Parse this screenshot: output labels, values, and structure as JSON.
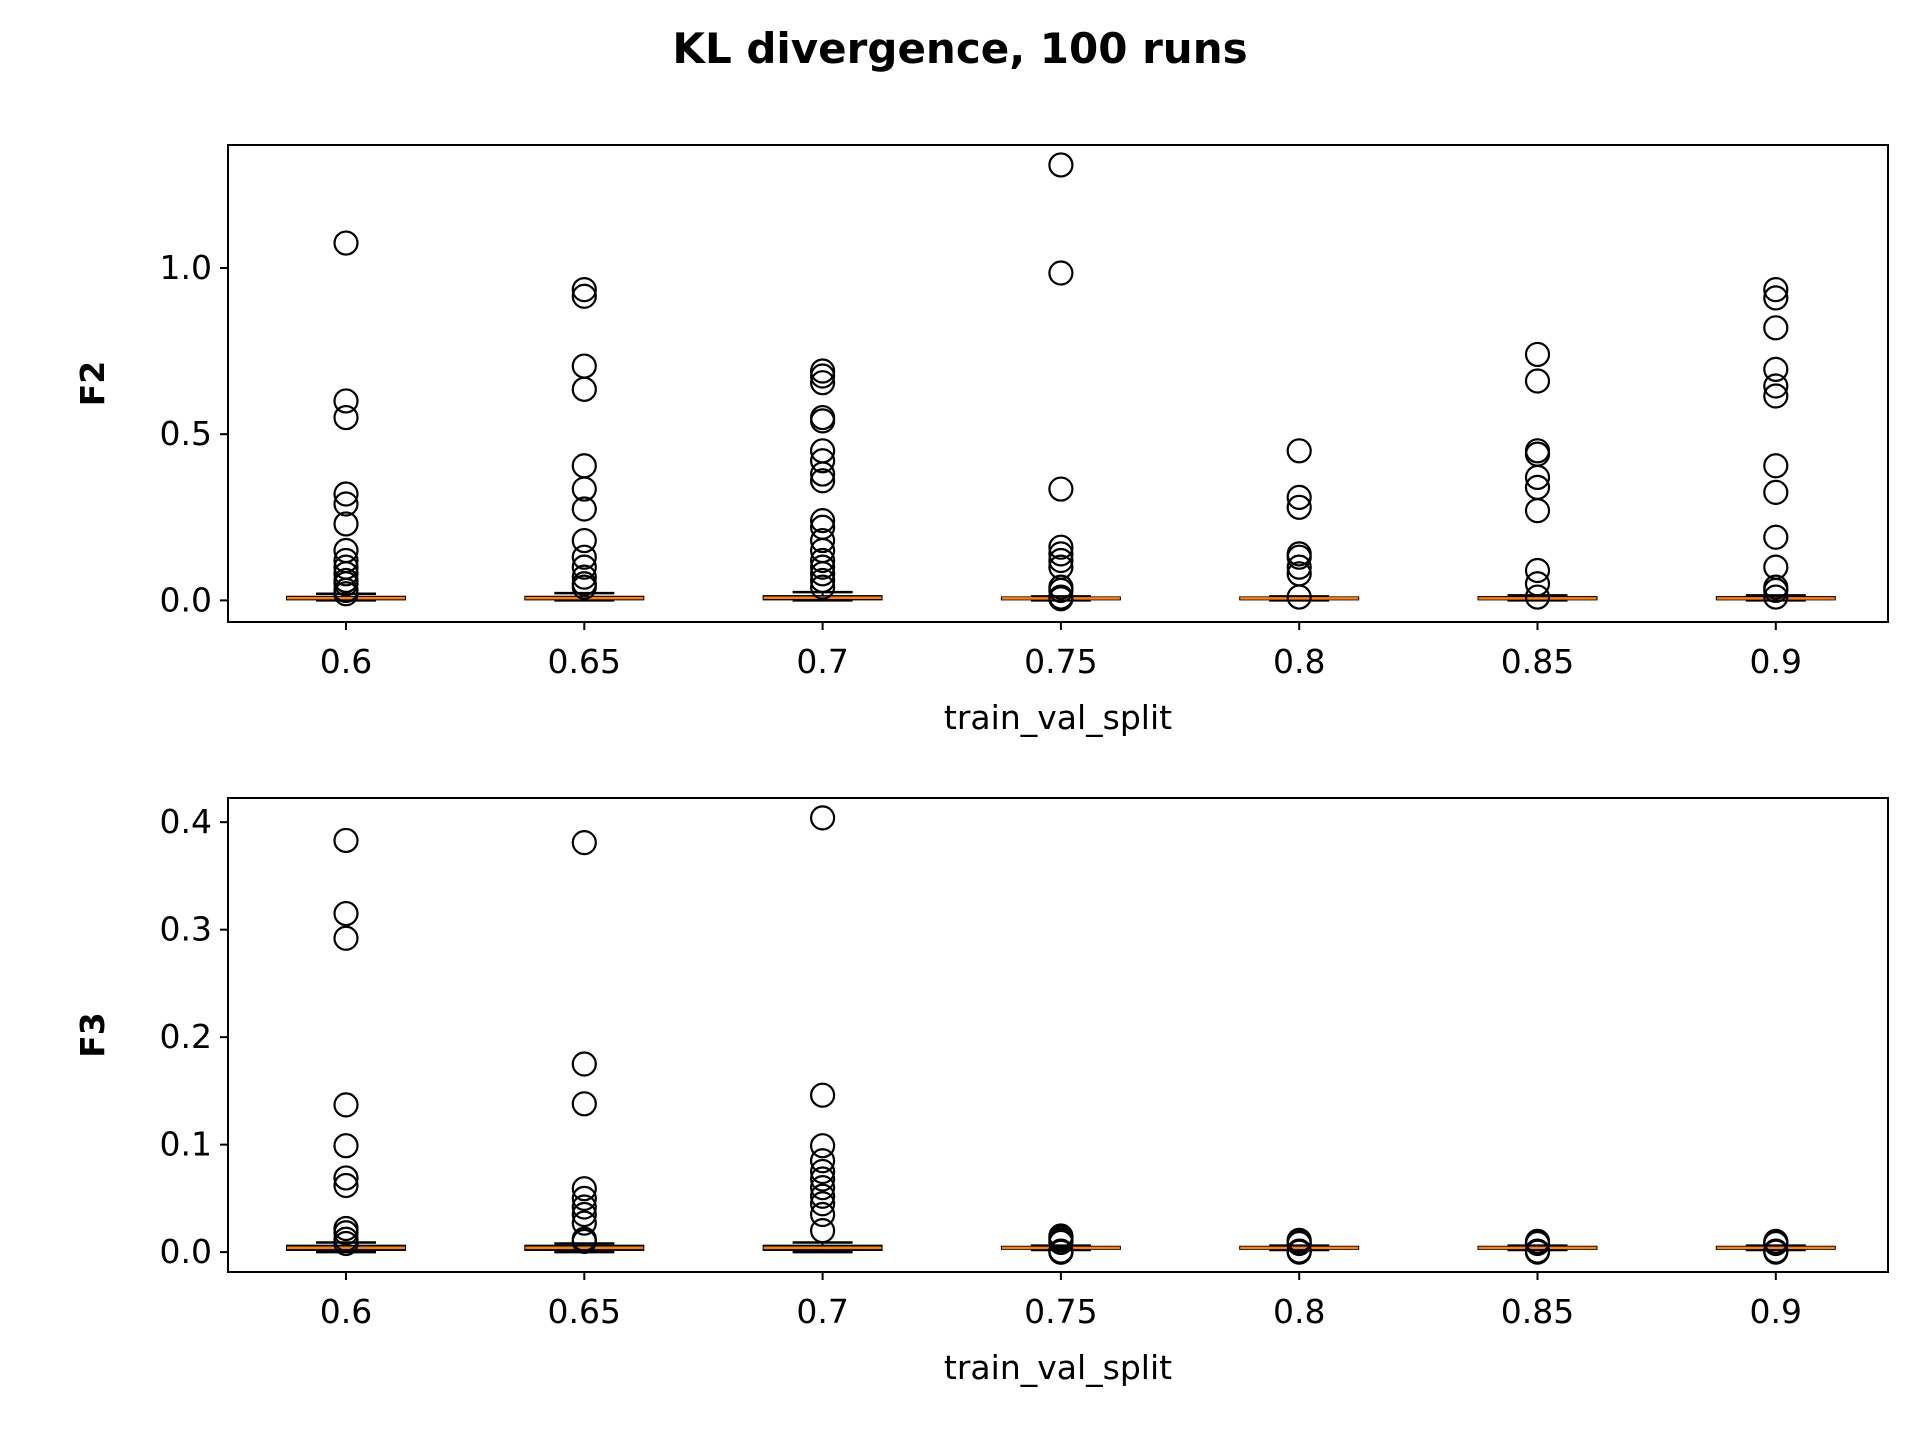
{
  "figure": {
    "title": "KL divergence, 100 runs"
  },
  "chart_data": [
    {
      "type": "box",
      "xlabel": "train_val_split",
      "ylabel": "F2",
      "categories": [
        "0.6",
        "0.65",
        "0.7",
        "0.75",
        "0.8",
        "0.85",
        "0.9"
      ],
      "ylim": [
        -0.065,
        1.37
      ],
      "yticks": [
        {
          "value": 0.0,
          "label": "0.0"
        },
        {
          "value": 0.5,
          "label": "0.5"
        },
        {
          "value": 1.0,
          "label": "1.0"
        }
      ],
      "grid": false,
      "median_color": "#ff7f0e",
      "boxes": [
        {
          "category": "0.6",
          "q1": 0.003,
          "median": 0.007,
          "q3": 0.011,
          "whislo": 0.0,
          "whishi": 0.02,
          "fliers": [
            1.075,
            0.6,
            0.55,
            0.32,
            0.29,
            0.23,
            0.15,
            0.12,
            0.1,
            0.08,
            0.06,
            0.05,
            0.03,
            0.02
          ]
        },
        {
          "category": "0.65",
          "q1": 0.003,
          "median": 0.007,
          "q3": 0.011,
          "whislo": 0.0,
          "whishi": 0.022,
          "fliers": [
            0.935,
            0.915,
            0.705,
            0.635,
            0.405,
            0.335,
            0.275,
            0.18,
            0.13,
            0.1,
            0.07,
            0.05,
            0.04
          ]
        },
        {
          "category": "0.7",
          "q1": 0.003,
          "median": 0.008,
          "q3": 0.013,
          "whislo": 0.0,
          "whishi": 0.025,
          "fliers": [
            0.69,
            0.675,
            0.655,
            0.55,
            0.54,
            0.45,
            0.42,
            0.38,
            0.36,
            0.24,
            0.22,
            0.18,
            0.15,
            0.12,
            0.1,
            0.08,
            0.06,
            0.04
          ]
        },
        {
          "category": "0.75",
          "q1": 0.003,
          "median": 0.006,
          "q3": 0.009,
          "whislo": 0.0,
          "whishi": 0.012,
          "fliers": [
            1.31,
            0.985,
            0.335,
            0.16,
            0.14,
            0.12,
            0.1,
            0.04,
            0.03,
            0.01,
            0.005
          ]
        },
        {
          "category": "0.8",
          "q1": 0.003,
          "median": 0.006,
          "q3": 0.009,
          "whislo": 0.0,
          "whishi": 0.012,
          "fliers": [
            0.45,
            0.31,
            0.28,
            0.14,
            0.13,
            0.1,
            0.08,
            0.01
          ]
        },
        {
          "category": "0.85",
          "q1": 0.003,
          "median": 0.006,
          "q3": 0.01,
          "whislo": 0.0,
          "whishi": 0.015,
          "fliers": [
            0.74,
            0.66,
            0.45,
            0.44,
            0.37,
            0.34,
            0.27,
            0.09,
            0.05,
            0.01
          ]
        },
        {
          "category": "0.9",
          "q1": 0.003,
          "median": 0.006,
          "q3": 0.01,
          "whislo": 0.0,
          "whishi": 0.015,
          "fliers": [
            0.935,
            0.91,
            0.82,
            0.695,
            0.645,
            0.615,
            0.405,
            0.325,
            0.19,
            0.1,
            0.04,
            0.03,
            0.01
          ]
        }
      ]
    },
    {
      "type": "box",
      "xlabel": "train_val_split",
      "ylabel": "F3",
      "categories": [
        "0.6",
        "0.65",
        "0.7",
        "0.75",
        "0.8",
        "0.85",
        "0.9"
      ],
      "ylim": [
        -0.0185,
        0.4225
      ],
      "yticks": [
        {
          "value": 0.0,
          "label": "0.0"
        },
        {
          "value": 0.1,
          "label": "0.1"
        },
        {
          "value": 0.2,
          "label": "0.2"
        },
        {
          "value": 0.3,
          "label": "0.3"
        },
        {
          "value": 0.4,
          "label": "0.4"
        }
      ],
      "grid": false,
      "median_color": "#ff7f0e",
      "boxes": [
        {
          "category": "0.6",
          "q1": 0.002,
          "median": 0.004,
          "q3": 0.006,
          "whislo": 0.0,
          "whishi": 0.009,
          "fliers": [
            0.383,
            0.315,
            0.292,
            0.137,
            0.099,
            0.069,
            0.062,
            0.022,
            0.018,
            0.012,
            0.008
          ]
        },
        {
          "category": "0.65",
          "q1": 0.002,
          "median": 0.004,
          "q3": 0.006,
          "whislo": 0.0,
          "whishi": 0.008,
          "fliers": [
            0.381,
            0.175,
            0.138,
            0.059,
            0.05,
            0.042,
            0.035,
            0.027,
            0.012,
            0.01
          ]
        },
        {
          "category": "0.7",
          "q1": 0.002,
          "median": 0.004,
          "q3": 0.006,
          "whislo": 0.0,
          "whishi": 0.009,
          "fliers": [
            0.404,
            0.146,
            0.099,
            0.085,
            0.075,
            0.068,
            0.06,
            0.052,
            0.045,
            0.035,
            0.02
          ]
        },
        {
          "category": "0.75",
          "q1": 0.003,
          "median": 0.004,
          "q3": 0.005,
          "whislo": 0.002,
          "whishi": 0.006,
          "fliers": [
            0.015,
            0.013,
            0.011,
            0.009,
            0.001,
            0.0,
            0.0
          ]
        },
        {
          "category": "0.8",
          "q1": 0.003,
          "median": 0.004,
          "q3": 0.005,
          "whislo": 0.002,
          "whishi": 0.006,
          "fliers": [
            0.011,
            0.009,
            0.008,
            0.001,
            0.0
          ]
        },
        {
          "category": "0.85",
          "q1": 0.003,
          "median": 0.004,
          "q3": 0.005,
          "whislo": 0.002,
          "whishi": 0.006,
          "fliers": [
            0.01,
            0.009,
            0.008,
            0.001,
            0.0
          ]
        },
        {
          "category": "0.9",
          "q1": 0.003,
          "median": 0.004,
          "q3": 0.005,
          "whislo": 0.002,
          "whishi": 0.006,
          "fliers": [
            0.01,
            0.009,
            0.008,
            0.001,
            0.0
          ]
        }
      ]
    }
  ]
}
